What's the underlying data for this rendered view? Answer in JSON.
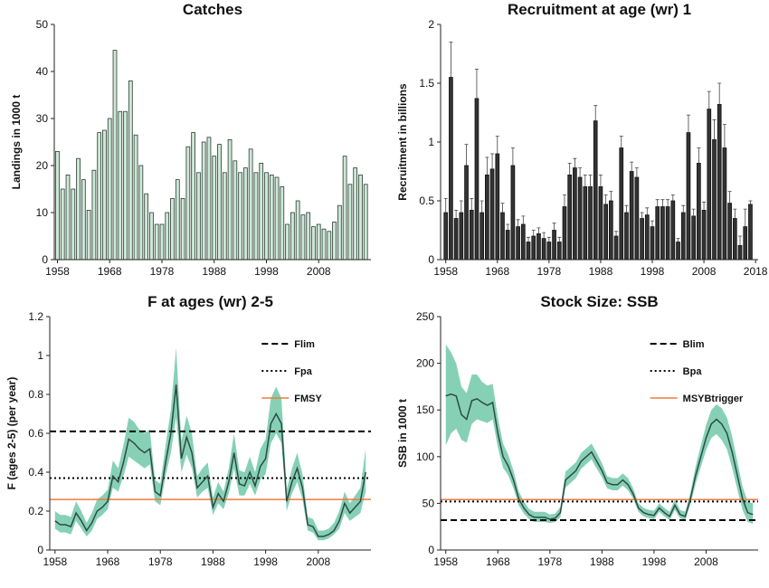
{
  "chart_data": [
    {
      "type": "bar",
      "title": "Catches",
      "ylabel": "Landings in 1000 t",
      "color": "#cde8d6",
      "edge": "#2b3b35",
      "x": [
        1958,
        1959,
        1960,
        1961,
        1962,
        1963,
        1964,
        1965,
        1966,
        1967,
        1968,
        1969,
        1970,
        1971,
        1972,
        1973,
        1974,
        1975,
        1976,
        1977,
        1978,
        1979,
        1980,
        1981,
        1982,
        1983,
        1984,
        1985,
        1986,
        1987,
        1988,
        1989,
        1990,
        1991,
        1992,
        1993,
        1994,
        1995,
        1996,
        1997,
        1998,
        1999,
        2000,
        2001,
        2002,
        2003,
        2004,
        2005,
        2006,
        2007,
        2008,
        2009,
        2010,
        2011,
        2012,
        2013,
        2014,
        2015,
        2016,
        2017
      ],
      "values": [
        23,
        15,
        18,
        15,
        21.5,
        17,
        10.5,
        19,
        27,
        27.5,
        30,
        44.5,
        31.5,
        31.5,
        38,
        26.5,
        20,
        14,
        10,
        7.5,
        7.5,
        10,
        13,
        17,
        13,
        24,
        27,
        18.5,
        25,
        26,
        22,
        24.5,
        18.5,
        25.5,
        21,
        18.5,
        19.5,
        23.5,
        18.5,
        20.5,
        18.5,
        18,
        17.5,
        15.5,
        7.5,
        10,
        12.5,
        9.5,
        10,
        7,
        7.5,
        6.5,
        6,
        8,
        11.5,
        22,
        16,
        19.5,
        18,
        16
      ],
      "xlim": [
        1957.4,
        2018
      ],
      "xticks": [
        1958,
        1968,
        1978,
        1988,
        1998,
        2008
      ],
      "ylim": [
        0,
        50
      ],
      "yticks": [
        0,
        10,
        20,
        30,
        40,
        50
      ]
    },
    {
      "type": "errorbar",
      "title": "Recruitment at age (wr) 1",
      "ylabel": "Recruitment in billions",
      "color": "#333333",
      "edge": "#111111",
      "x": [
        1958,
        1959,
        1960,
        1961,
        1962,
        1963,
        1964,
        1965,
        1966,
        1967,
        1968,
        1969,
        1970,
        1971,
        1972,
        1973,
        1974,
        1975,
        1976,
        1977,
        1978,
        1979,
        1980,
        1981,
        1982,
        1983,
        1984,
        1985,
        1986,
        1987,
        1988,
        1989,
        1990,
        1991,
        1992,
        1993,
        1994,
        1995,
        1996,
        1997,
        1998,
        1999,
        2000,
        2001,
        2002,
        2003,
        2004,
        2005,
        2006,
        2007,
        2008,
        2009,
        2010,
        2011,
        2012,
        2013,
        2014,
        2015,
        2016,
        2017
      ],
      "values": [
        0.4,
        1.55,
        0.35,
        0.4,
        0.8,
        0.42,
        1.37,
        0.4,
        0.72,
        0.77,
        0.9,
        0.4,
        0.25,
        0.8,
        0.28,
        0.3,
        0.15,
        0.2,
        0.22,
        0.18,
        0.15,
        0.25,
        0.15,
        0.45,
        0.72,
        0.78,
        0.7,
        0.62,
        0.62,
        1.18,
        0.62,
        0.47,
        0.5,
        0.2,
        0.95,
        0.4,
        0.75,
        0.7,
        0.35,
        0.38,
        0.28,
        0.45,
        0.45,
        0.45,
        0.5,
        0.15,
        0.4,
        1.08,
        0.37,
        0.82,
        0.42,
        1.28,
        1.02,
        1.32,
        0.95,
        0.48,
        0.35,
        0.12,
        0.28,
        0.47
      ],
      "errors": [
        0.12,
        0.3,
        0.07,
        0.1,
        0.18,
        0.1,
        0.25,
        0.1,
        0.15,
        0.13,
        0.15,
        0.08,
        0.05,
        0.15,
        0.06,
        0.07,
        0.04,
        0.05,
        0.05,
        0.05,
        0.04,
        0.06,
        0.04,
        0.1,
        0.1,
        0.08,
        0.08,
        0.1,
        0.1,
        0.13,
        0.1,
        0.08,
        0.08,
        0.04,
        0.1,
        0.06,
        0.08,
        0.08,
        0.05,
        0.06,
        0.05,
        0.06,
        0.06,
        0.06,
        0.05,
        0.03,
        0.06,
        0.15,
        0.06,
        0.13,
        0.07,
        0.15,
        0.17,
        0.18,
        0.2,
        0.1,
        0.08,
        0.08,
        0.15,
        0.03
      ],
      "xlim": [
        1957,
        2018.5
      ],
      "xticks": [
        1958,
        1968,
        1978,
        1988,
        1998,
        2008,
        2018
      ],
      "ylim": [
        0,
        2
      ],
      "yticks": [
        0,
        0.5,
        1,
        1.5,
        2
      ]
    },
    {
      "type": "line",
      "title": "F at ages (wr) 2-5",
      "ylabel": "F (ages 2-5) (per year)",
      "color": "#2f4a44",
      "band_color": "#86d1b6",
      "x": [
        1958,
        1959,
        1960,
        1961,
        1962,
        1963,
        1964,
        1965,
        1966,
        1967,
        1968,
        1969,
        1970,
        1971,
        1972,
        1973,
        1974,
        1975,
        1976,
        1977,
        1978,
        1979,
        1980,
        1981,
        1982,
        1983,
        1984,
        1985,
        1986,
        1987,
        1988,
        1989,
        1990,
        1991,
        1992,
        1993,
        1994,
        1995,
        1996,
        1997,
        1998,
        1999,
        2000,
        2001,
        2002,
        2003,
        2004,
        2005,
        2006,
        2007,
        2008,
        2009,
        2010,
        2011,
        2012,
        2013,
        2014,
        2015,
        2016,
        2017
      ],
      "values": [
        0.15,
        0.13,
        0.13,
        0.12,
        0.19,
        0.15,
        0.1,
        0.14,
        0.2,
        0.22,
        0.25,
        0.38,
        0.35,
        0.45,
        0.57,
        0.55,
        0.52,
        0.5,
        0.52,
        0.3,
        0.28,
        0.45,
        0.6,
        0.85,
        0.47,
        0.58,
        0.5,
        0.32,
        0.35,
        0.38,
        0.22,
        0.29,
        0.25,
        0.35,
        0.5,
        0.34,
        0.33,
        0.4,
        0.33,
        0.43,
        0.47,
        0.65,
        0.7,
        0.65,
        0.25,
        0.35,
        0.42,
        0.32,
        0.13,
        0.12,
        0.07,
        0.07,
        0.08,
        0.1,
        0.15,
        0.24,
        0.19,
        0.22,
        0.25,
        0.4
      ],
      "lower": [
        0.11,
        0.09,
        0.09,
        0.08,
        0.15,
        0.11,
        0.07,
        0.1,
        0.16,
        0.18,
        0.21,
        0.32,
        0.3,
        0.38,
        0.48,
        0.46,
        0.44,
        0.42,
        0.44,
        0.25,
        0.23,
        0.38,
        0.5,
        0.68,
        0.4,
        0.49,
        0.42,
        0.27,
        0.3,
        0.32,
        0.18,
        0.24,
        0.21,
        0.29,
        0.42,
        0.28,
        0.28,
        0.34,
        0.28,
        0.36,
        0.39,
        0.55,
        0.6,
        0.55,
        0.2,
        0.29,
        0.35,
        0.26,
        0.1,
        0.09,
        0.05,
        0.05,
        0.06,
        0.08,
        0.11,
        0.19,
        0.15,
        0.17,
        0.19,
        0.3
      ],
      "upper": [
        0.2,
        0.18,
        0.18,
        0.17,
        0.25,
        0.2,
        0.14,
        0.19,
        0.26,
        0.28,
        0.31,
        0.46,
        0.42,
        0.54,
        0.68,
        0.66,
        0.62,
        0.6,
        0.62,
        0.36,
        0.34,
        0.54,
        0.72,
        1.04,
        0.56,
        0.69,
        0.6,
        0.38,
        0.42,
        0.45,
        0.27,
        0.35,
        0.3,
        0.42,
        0.6,
        0.41,
        0.4,
        0.48,
        0.4,
        0.52,
        0.57,
        0.78,
        0.84,
        0.78,
        0.31,
        0.42,
        0.5,
        0.39,
        0.17,
        0.16,
        0.1,
        0.1,
        0.11,
        0.14,
        0.2,
        0.3,
        0.24,
        0.28,
        0.32,
        0.52
      ],
      "reference_lines": [
        {
          "name": "Flim",
          "value": 0.61,
          "style": "dashed",
          "color": "#000000"
        },
        {
          "name": "Fpa",
          "value": 0.37,
          "style": "dotted",
          "color": "#000000"
        },
        {
          "name": "FMSY",
          "value": 0.26,
          "style": "solid",
          "color": "#f07a3c"
        }
      ],
      "xlim": [
        1957,
        2018
      ],
      "xticks": [
        1958,
        1968,
        1978,
        1988,
        1998,
        2008
      ],
      "ylim": [
        0,
        1.2
      ],
      "yticks": [
        0,
        0.2,
        0.4,
        0.6,
        0.8,
        1,
        1.2
      ]
    },
    {
      "type": "line",
      "title": "Stock Size: SSB",
      "ylabel": "SSB in 1000 t",
      "color": "#2f4a44",
      "band_color": "#86d1b6",
      "x": [
        1958,
        1959,
        1960,
        1961,
        1962,
        1963,
        1964,
        1965,
        1966,
        1967,
        1968,
        1969,
        1970,
        1971,
        1972,
        1973,
        1974,
        1975,
        1976,
        1977,
        1978,
        1979,
        1980,
        1981,
        1982,
        1983,
        1984,
        1985,
        1986,
        1987,
        1988,
        1989,
        1990,
        1991,
        1992,
        1993,
        1994,
        1995,
        1996,
        1997,
        1998,
        1999,
        2000,
        2001,
        2002,
        2003,
        2004,
        2005,
        2006,
        2007,
        2008,
        2009,
        2010,
        2011,
        2012,
        2013,
        2014,
        2015,
        2016,
        2017
      ],
      "values": [
        165,
        167,
        165,
        145,
        140,
        160,
        162,
        158,
        155,
        158,
        125,
        100,
        90,
        75,
        55,
        45,
        38,
        35,
        35,
        35,
        33,
        34,
        40,
        75,
        80,
        85,
        95,
        100,
        105,
        95,
        85,
        72,
        70,
        70,
        75,
        70,
        60,
        45,
        40,
        38,
        37,
        45,
        40,
        36,
        48,
        38,
        36,
        55,
        80,
        100,
        120,
        135,
        140,
        135,
        125,
        105,
        80,
        55,
        40,
        38
      ],
      "lower": [
        112,
        125,
        130,
        118,
        115,
        135,
        140,
        138,
        136,
        140,
        110,
        88,
        80,
        66,
        48,
        39,
        33,
        30,
        30,
        30,
        29,
        30,
        35,
        67,
        72,
        77,
        87,
        92,
        97,
        87,
        78,
        66,
        64,
        64,
        69,
        64,
        55,
        41,
        36,
        34,
        33,
        41,
        36,
        32,
        43,
        34,
        32,
        49,
        71,
        89,
        107,
        120,
        124,
        118,
        108,
        88,
        65,
        43,
        30,
        28
      ],
      "upper": [
        220,
        212,
        200,
        175,
        168,
        188,
        188,
        180,
        176,
        178,
        142,
        114,
        102,
        85,
        63,
        52,
        44,
        41,
        41,
        41,
        38,
        39,
        46,
        84,
        89,
        94,
        104,
        109,
        114,
        104,
        93,
        79,
        77,
        77,
        82,
        77,
        66,
        50,
        45,
        43,
        42,
        50,
        45,
        41,
        54,
        43,
        41,
        62,
        90,
        112,
        134,
        150,
        156,
        152,
        142,
        122,
        95,
        68,
        52,
        50
      ],
      "reference_lines": [
        {
          "name": "Blim",
          "value": 32,
          "style": "dashed",
          "color": "#000000"
        },
        {
          "name": "Bpa",
          "value": 52,
          "style": "dotted",
          "color": "#000000"
        },
        {
          "name": "MSYBtrigger",
          "value": 54,
          "style": "solid",
          "color": "#f07a3c"
        }
      ],
      "xlim": [
        1957,
        2018
      ],
      "xticks": [
        1958,
        1968,
        1978,
        1988,
        1998,
        2008
      ],
      "ylim": [
        0,
        250
      ],
      "yticks": [
        0,
        50,
        100,
        150,
        200,
        250
      ]
    }
  ]
}
